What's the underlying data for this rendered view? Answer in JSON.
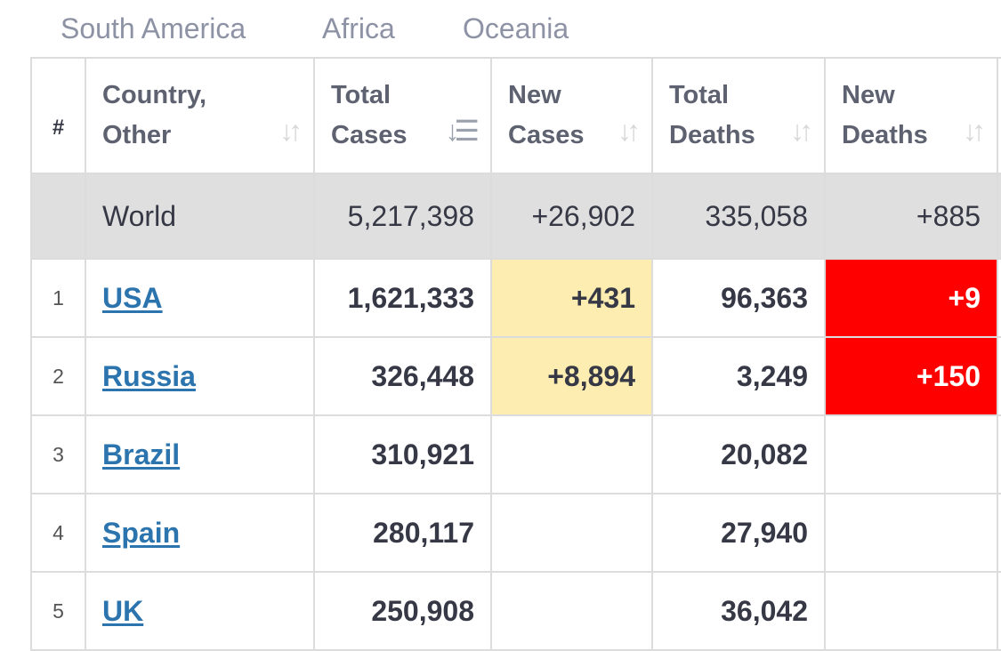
{
  "region_tabs": [
    "South America",
    "Africa",
    "Oceania"
  ],
  "table": {
    "headers": {
      "rank": "#",
      "country": [
        "Country,",
        "Other"
      ],
      "total_cases": [
        "Total",
        "Cases"
      ],
      "new_cases": [
        "New",
        "Cases"
      ],
      "total_deaths": [
        "Total",
        "Deaths"
      ],
      "new_deaths": [
        "New",
        "Deaths"
      ]
    },
    "sort_icons": {
      "country": "sort-both-icon",
      "total_cases": "sort-descending-icon",
      "new_cases": "sort-both-icon",
      "total_deaths": "sort-both-icon",
      "new_deaths": "sort-both-icon"
    },
    "world": {
      "country": "World",
      "total_cases": "5,217,398",
      "new_cases": "+26,902",
      "total_deaths": "335,058",
      "new_deaths": "+885"
    },
    "rows": [
      {
        "rank": "1",
        "country": "USA",
        "total_cases": "1,621,333",
        "new_cases": "+431",
        "total_deaths": "96,363",
        "new_deaths": "+9"
      },
      {
        "rank": "2",
        "country": "Russia",
        "total_cases": "326,448",
        "new_cases": "+8,894",
        "total_deaths": "3,249",
        "new_deaths": "+150"
      },
      {
        "rank": "3",
        "country": "Brazil",
        "total_cases": "310,921",
        "new_cases": "",
        "total_deaths": "20,082",
        "new_deaths": ""
      },
      {
        "rank": "4",
        "country": "Spain",
        "total_cases": "280,117",
        "new_cases": "",
        "total_deaths": "27,940",
        "new_deaths": ""
      },
      {
        "rank": "5",
        "country": "UK",
        "total_cases": "250,908",
        "new_cases": "",
        "total_deaths": "36,042",
        "new_deaths": ""
      }
    ],
    "colors": {
      "new_cases_highlight": "#fdedb1",
      "new_deaths_highlight": "#ff0000",
      "link": "#2b74ad",
      "world_row": "#dfdfdf"
    }
  }
}
